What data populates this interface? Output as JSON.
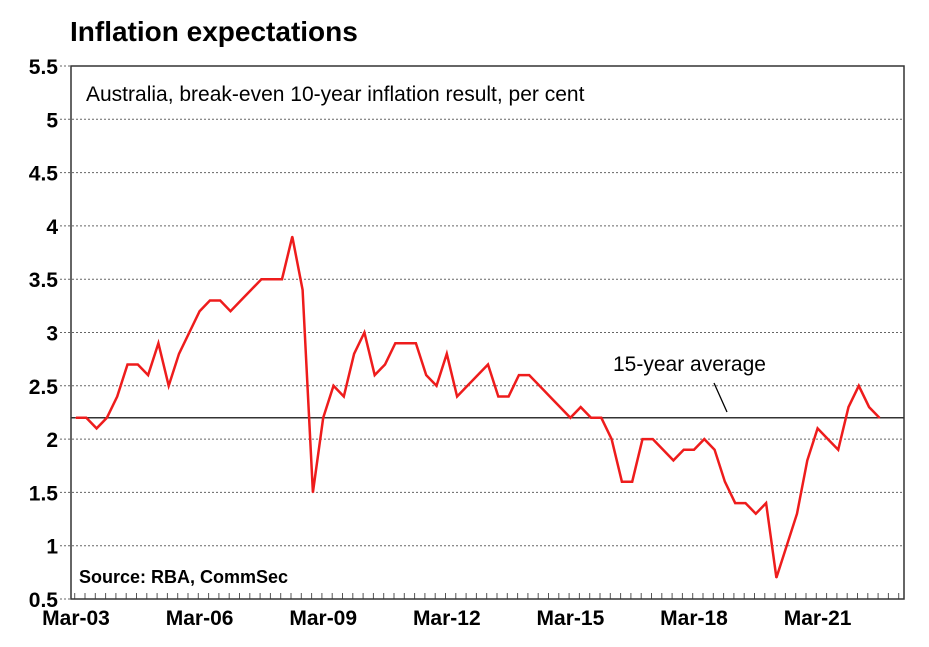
{
  "chart_data": {
    "type": "line",
    "title": "Inflation expectations",
    "subtitle": "Australia, break-even 10-year inflation result, per cent",
    "source": "Source: RBA, CommSec",
    "xlabel": "",
    "ylabel": "",
    "ylim": [
      0.5,
      5.5
    ],
    "yticks": [
      0.5,
      1,
      1.5,
      2,
      2.5,
      3,
      3.5,
      4,
      4.5,
      5,
      5.5
    ],
    "ytick_labels": [
      "0.5",
      "1",
      "1.5",
      "2",
      "2.5",
      "3",
      "3.5",
      "4",
      "4.5",
      "5",
      "5.5"
    ],
    "x_frequency": "quarterly",
    "x_start": "Mar-03",
    "x_end": "Sep-22",
    "xtick_labels": [
      "Mar-03",
      "Mar-06",
      "Mar-09",
      "Mar-12",
      "Mar-15",
      "Mar-18",
      "Mar-21"
    ],
    "xtick_index": [
      0,
      12,
      24,
      36,
      48,
      60,
      72
    ],
    "grid": "horizontal-dotted",
    "series": [
      {
        "name": "Break-even 10-year inflation",
        "color": "#ee1c1c",
        "values": [
          2.2,
          2.2,
          2.1,
          2.2,
          2.4,
          2.7,
          2.7,
          2.6,
          2.9,
          2.5,
          2.8,
          3.0,
          3.2,
          3.3,
          3.3,
          3.2,
          3.3,
          3.4,
          3.5,
          3.5,
          3.5,
          3.9,
          3.4,
          1.5,
          2.2,
          2.5,
          2.4,
          2.8,
          3.0,
          2.6,
          2.7,
          2.9,
          2.9,
          2.9,
          2.6,
          2.5,
          2.8,
          2.4,
          2.5,
          2.6,
          2.7,
          2.4,
          2.4,
          2.6,
          2.6,
          2.5,
          2.4,
          2.3,
          2.2,
          2.3,
          2.2,
          2.2,
          2.0,
          1.6,
          1.6,
          2.0,
          2.0,
          1.9,
          1.8,
          1.9,
          1.9,
          2.0,
          1.9,
          1.6,
          1.4,
          1.4,
          1.3,
          1.4,
          0.7,
          1.0,
          1.3,
          1.8,
          2.1,
          2.0,
          1.9,
          2.3,
          2.5,
          2.3,
          2.2
        ]
      }
    ],
    "reference_line": {
      "name": "15-year average",
      "value": 2.2,
      "color": "#333333"
    },
    "annotations": [
      {
        "text": "15-year average",
        "points_to": "reference_line"
      }
    ],
    "legend": "none"
  }
}
